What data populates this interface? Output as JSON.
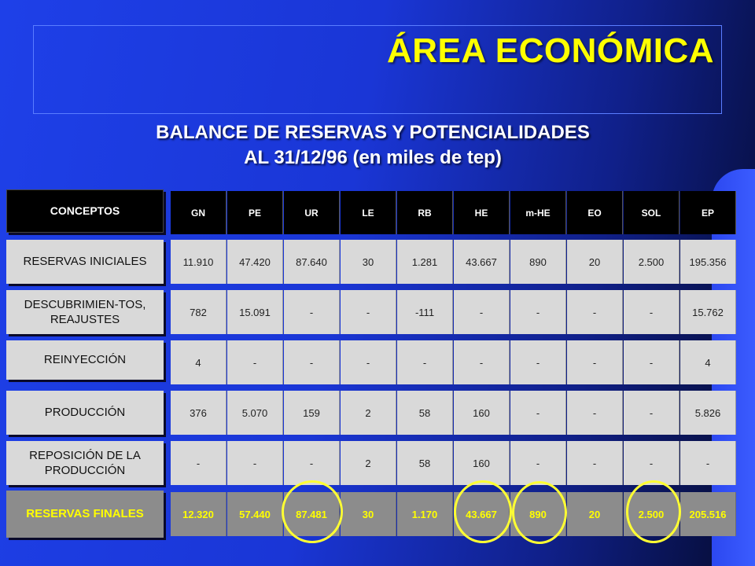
{
  "title": "ÁREA ECONÓMICA",
  "subtitle_line1": "BALANCE DE RESERVAS Y POTENCIALIDADES",
  "subtitle_line2": "AL 31/12/96 (en miles de tep)",
  "table": {
    "concepts_header": "CONCEPTOS",
    "columns": [
      "GN",
      "PE",
      "UR",
      "LE",
      "RB",
      "HE",
      "m-HE",
      "EO",
      "SOL",
      "EP"
    ],
    "rows": [
      {
        "label": "RESERVAS INICIALES",
        "values": [
          "11.910",
          "47.420",
          "87.640",
          "30",
          "1.281",
          "43.667",
          "890",
          "20",
          "2.500",
          "195.356"
        ]
      },
      {
        "label": "DESCUBRIMIEN-TOS, REAJUSTES",
        "values": [
          "782",
          "15.091",
          "-",
          "-",
          "-111",
          "-",
          "-",
          "-",
          "-",
          "15.762"
        ]
      },
      {
        "label": "REINYECCIÓN",
        "values": [
          "4",
          "-",
          "-",
          "-",
          "-",
          "-",
          "-",
          "-",
          "-",
          "4"
        ]
      },
      {
        "label": "PRODUCCIÓN",
        "values": [
          "376",
          "5.070",
          "159",
          "2",
          "58",
          "160",
          "-",
          "-",
          "-",
          "5.826"
        ]
      },
      {
        "label": "REPOSICIÓN DE LA PRODUCCIÓN",
        "values": [
          "-",
          "-",
          "-",
          "2",
          "58",
          "160",
          "-",
          "-",
          "-",
          "-"
        ]
      },
      {
        "label": "RESERVAS FINALES",
        "values": [
          "12.320",
          "57.440",
          "87.481",
          "30",
          "1.170",
          "43.667",
          "890",
          "20",
          "2.500",
          "205.516"
        ]
      }
    ]
  },
  "highlight_color": "#ffff33"
}
